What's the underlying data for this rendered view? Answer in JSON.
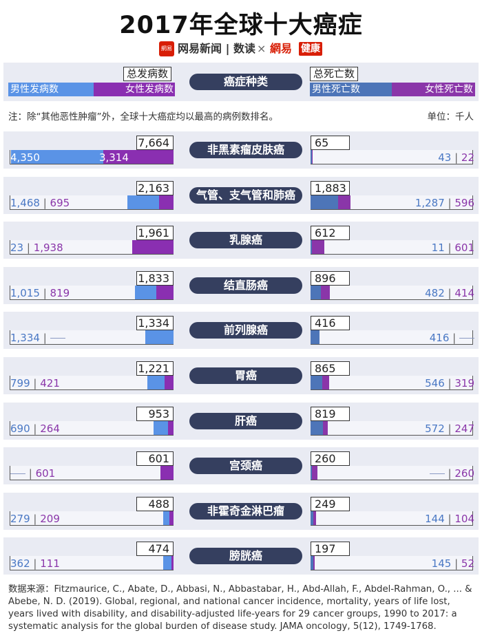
{
  "title": "2017年全球十大癌症",
  "brand": {
    "logo": "網易",
    "name1": "网易新闻",
    "name1b": "数读",
    "times": "×",
    "name2": "網易",
    "name3": "健康"
  },
  "header": {
    "total_incidence": "总发病数",
    "male_incidence": "男性发病数",
    "female_incidence": "女性发病数",
    "category": "癌症种类",
    "total_deaths": "总死亡数",
    "male_deaths": "男性死亡数",
    "female_deaths": "女性死亡数"
  },
  "note": "注：除“其他恶性肿瘤”外，全球十大癌症均以最高的病例数排名。",
  "unit": "单位：千人",
  "source": "数据来源：Fitzmaurice, C., Abate, D., Abbasi, N., Abbastabar, H., Abd-Allah, F., Abdel-Rahman, O., ... & Abebe, N. D. (2019). Global, regional, and national cancer incidence, mortality, years of life lost, years lived with disability, and disability-adjusted life-years for 29 cancer groups, 1990 to 2017: a systematic analysis for the global burden of disease study. JAMA oncology, 5(12), 1749-1768.",
  "colors": {
    "male_incidence": "#5a93e6",
    "female_incidence": "#8a2fb1",
    "male_deaths": "#4d75b8",
    "female_deaths": "#8a36a9",
    "pill": "#353f5f",
    "panel": "#e9ebf3"
  },
  "chart_data": {
    "type": "bar",
    "categories": [
      "非黑素瘤皮肤癌",
      "气管、支气管和肺癌",
      "乳腺癌",
      "结直肠癌",
      "前列腺癌",
      "胃癌",
      "肝癌",
      "宫颈癌",
      "非霍奇金淋巴瘤",
      "膀胱癌"
    ],
    "incidence": {
      "total": [
        "7,664",
        "2,163",
        "1,961",
        "1,833",
        "1,334",
        "1,221",
        "953",
        "601",
        "488",
        "474"
      ],
      "male": [
        "4,350",
        "1,468",
        "23",
        "1,015",
        "1,334",
        "799",
        "690",
        null,
        "279",
        "362"
      ],
      "female": [
        "3,314",
        "695",
        "1,938",
        "819",
        null,
        "421",
        "264",
        "601",
        "209",
        "111"
      ],
      "male_values": [
        4350,
        1468,
        23,
        1015,
        1334,
        799,
        690,
        0,
        279,
        362
      ],
      "female_values": [
        3314,
        695,
        1938,
        819,
        0,
        421,
        264,
        601,
        209,
        111
      ]
    },
    "deaths": {
      "total": [
        "65",
        "1,883",
        "612",
        "896",
        "416",
        "865",
        "819",
        "260",
        "249",
        "197"
      ],
      "male": [
        "43",
        "1,287",
        "11",
        "482",
        "416",
        "546",
        "572",
        null,
        "144",
        "145"
      ],
      "female": [
        "22",
        "596",
        "601",
        "414",
        null,
        "319",
        "247",
        "260",
        "104",
        "52"
      ],
      "male_values": [
        43,
        1287,
        11,
        482,
        416,
        546,
        572,
        0,
        144,
        145
      ],
      "female_values": [
        22,
        596,
        601,
        414,
        0,
        319,
        247,
        260,
        104,
        52
      ]
    },
    "ylabel": "",
    "xlabel": ""
  }
}
